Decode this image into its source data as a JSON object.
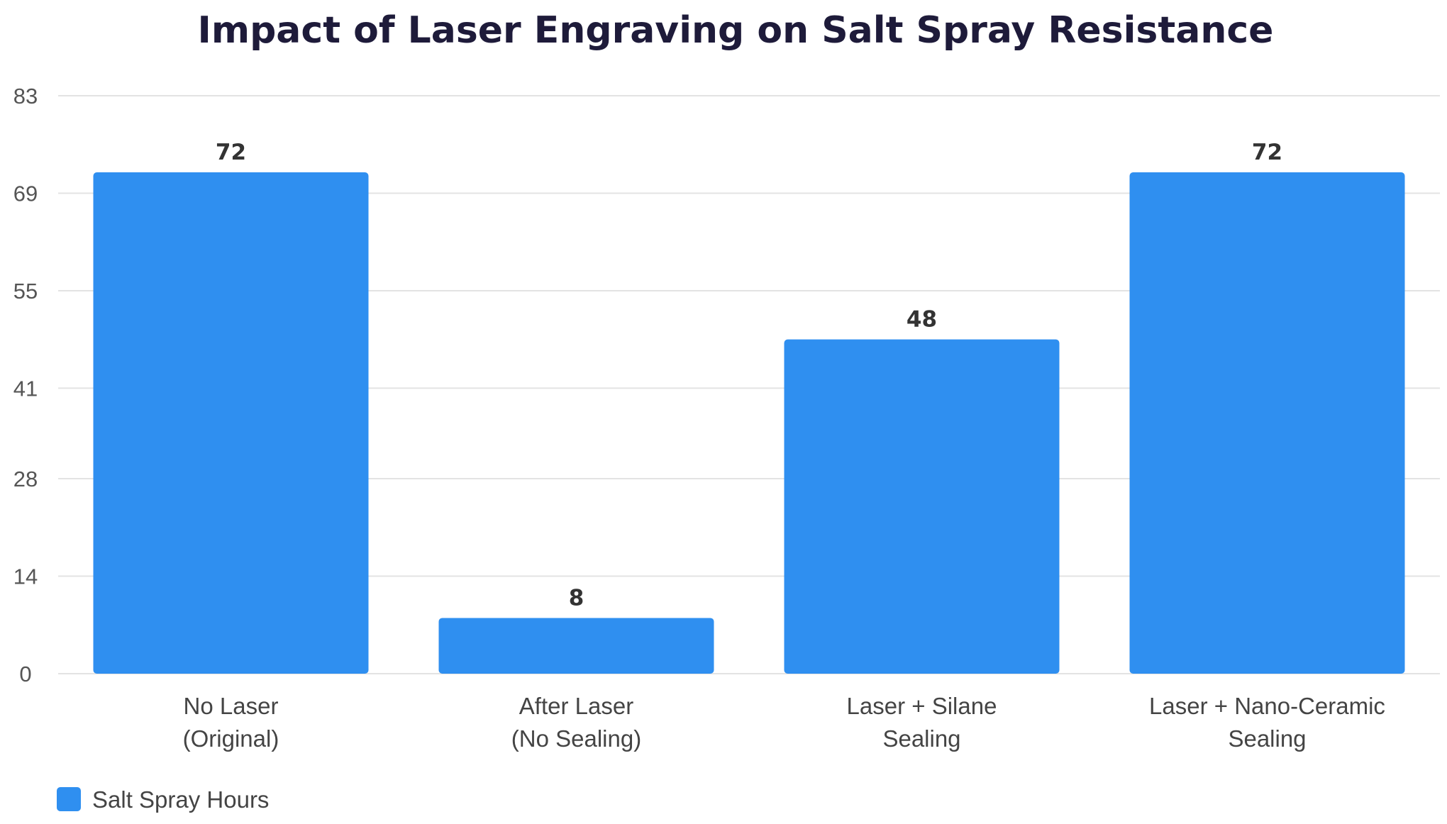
{
  "chart_data": {
    "type": "bar",
    "title": "Impact of Laser Engraving on Salt Spray Resistance",
    "xlabel": "",
    "ylabel": "",
    "categories": [
      [
        "No Laser",
        "(Original)"
      ],
      [
        "After Laser",
        "(No Sealing)"
      ],
      [
        "Laser + Silane",
        "Sealing"
      ],
      [
        "Laser + Nano-Ceramic",
        "Sealing"
      ]
    ],
    "series": [
      {
        "name": "Salt Spray Hours",
        "color": "#2f8ff0",
        "values": [
          72,
          8,
          48,
          72
        ]
      }
    ],
    "ylim": [
      0,
      83
    ],
    "yticks": [
      0,
      14,
      28,
      41,
      55,
      69,
      83
    ],
    "grid": true,
    "legend_position": "bottom-left",
    "data_labels": true
  }
}
